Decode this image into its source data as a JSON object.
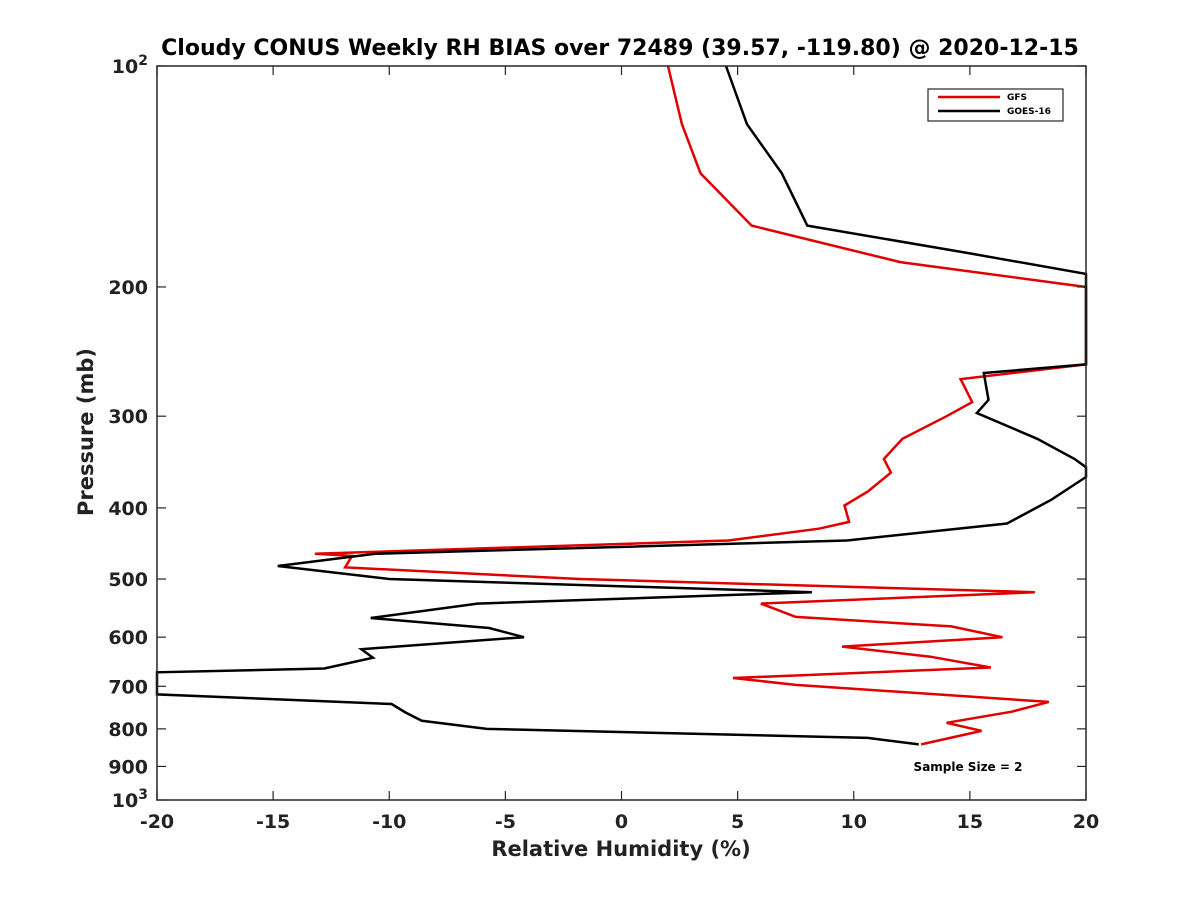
{
  "chart_data": {
    "type": "line",
    "title": "Cloudy CONUS Weekly RH BIAS over 72489 (39.57, -119.80) @ 2020-12-15",
    "xlabel": "Relative Humidity (%)",
    "ylabel": "Pressure (mb)",
    "xlim": [
      -20,
      20
    ],
    "ylim": [
      100,
      1000
    ],
    "y_scale": "log",
    "y_reversed": true,
    "grid": false,
    "legend_position": "top-right",
    "x_ticks": [
      {
        "value": -20,
        "label": "-20"
      },
      {
        "value": -15,
        "label": "-15"
      },
      {
        "value": -10,
        "label": "-10"
      },
      {
        "value": -5,
        "label": "-5"
      },
      {
        "value": 0,
        "label": "0"
      },
      {
        "value": 5,
        "label": "5"
      },
      {
        "value": 10,
        "label": "10"
      },
      {
        "value": 15,
        "label": "15"
      },
      {
        "value": 20,
        "label": "20"
      }
    ],
    "y_ticks": [
      {
        "value": 100,
        "base": "10",
        "exp": "2"
      },
      {
        "value": 200,
        "label": "200"
      },
      {
        "value": 300,
        "label": "300"
      },
      {
        "value": 400,
        "label": "400"
      },
      {
        "value": 500,
        "label": "500"
      },
      {
        "value": 600,
        "label": "600"
      },
      {
        "value": 700,
        "label": "700"
      },
      {
        "value": 800,
        "label": "800"
      },
      {
        "value": 900,
        "label": "900"
      },
      {
        "value": 1000,
        "base": "10",
        "exp": "3"
      }
    ],
    "annotation": "Sample Size = 2",
    "series": [
      {
        "name": "GFS",
        "color": "#e00000",
        "points": [
          [
            2.0,
            100
          ],
          [
            2.6,
            120
          ],
          [
            3.4,
            140
          ],
          [
            5.6,
            165
          ],
          [
            12.0,
            185
          ],
          [
            20.0,
            200
          ],
          [
            20.0,
            255
          ],
          [
            14.6,
            267
          ],
          [
            15.1,
            287
          ],
          [
            14.0,
            300
          ],
          [
            12.1,
            322
          ],
          [
            11.3,
            343
          ],
          [
            11.6,
            358
          ],
          [
            10.6,
            380
          ],
          [
            9.6,
            397
          ],
          [
            9.8,
            418
          ],
          [
            8.5,
            427
          ],
          [
            4.6,
            443
          ],
          [
            -13.2,
            462
          ],
          [
            -11.6,
            465
          ],
          [
            -11.9,
            482
          ],
          [
            -1.8,
            500
          ],
          [
            17.8,
            521
          ],
          [
            6.0,
            540
          ],
          [
            7.5,
            563
          ],
          [
            14.2,
            580
          ],
          [
            16.4,
            600
          ],
          [
            9.5,
            618
          ],
          [
            13.3,
            638
          ],
          [
            15.9,
            660
          ],
          [
            4.8,
            682
          ],
          [
            7.5,
            697
          ],
          [
            18.4,
            735
          ],
          [
            16.8,
            758
          ],
          [
            14.0,
            785
          ],
          [
            15.5,
            805
          ],
          [
            12.9,
            840
          ]
        ]
      },
      {
        "name": "GOES-16",
        "color": "#000000",
        "points": [
          [
            4.5,
            100
          ],
          [
            5.4,
            120
          ],
          [
            6.9,
            140
          ],
          [
            8.0,
            165
          ],
          [
            15.0,
            180
          ],
          [
            20.0,
            192
          ],
          [
            20.0,
            255
          ],
          [
            15.6,
            262
          ],
          [
            15.8,
            285
          ],
          [
            15.3,
            297
          ],
          [
            17.9,
            322
          ],
          [
            19.5,
            343
          ],
          [
            20.0,
            352
          ],
          [
            20.0,
            363
          ],
          [
            18.5,
            390
          ],
          [
            16.6,
            420
          ],
          [
            9.7,
            443
          ],
          [
            -10.6,
            462
          ],
          [
            -14.8,
            480
          ],
          [
            -10.0,
            500
          ],
          [
            8.2,
            521
          ],
          [
            -6.2,
            540
          ],
          [
            -10.8,
            565
          ],
          [
            -5.7,
            583
          ],
          [
            -4.2,
            600
          ],
          [
            -11.2,
            623
          ],
          [
            -10.7,
            640
          ],
          [
            -12.8,
            662
          ],
          [
            -20.0,
            670
          ],
          [
            -20.0,
            718
          ],
          [
            -9.9,
            740
          ],
          [
            -9.3,
            760
          ],
          [
            -8.6,
            780
          ],
          [
            -5.8,
            800
          ],
          [
            10.6,
            823
          ],
          [
            12.8,
            840
          ]
        ]
      }
    ]
  }
}
